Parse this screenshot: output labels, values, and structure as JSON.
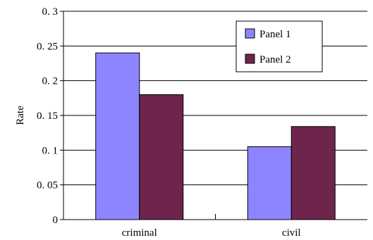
{
  "chart_data": {
    "type": "bar",
    "title": "",
    "xlabel": "",
    "ylabel": "Rate",
    "ylim": [
      0,
      0.3
    ],
    "yticks": [
      0,
      0.05,
      0.1,
      0.15,
      0.2,
      0.25,
      0.3
    ],
    "ytick_labels": [
      "0",
      "0. 05",
      "0. 1",
      "0. 15",
      "0. 2",
      "0. 25",
      "0. 3"
    ],
    "categories": [
      "criminal",
      "civil"
    ],
    "series": [
      {
        "name": "Panel 1",
        "values": [
          0.24,
          0.105
        ],
        "color": "#8C85FF"
      },
      {
        "name": "Panel 2",
        "values": [
          0.18,
          0.134
        ],
        "color": "#6E254C"
      }
    ],
    "grid": "horizontal",
    "legend_position": "top-right"
  }
}
